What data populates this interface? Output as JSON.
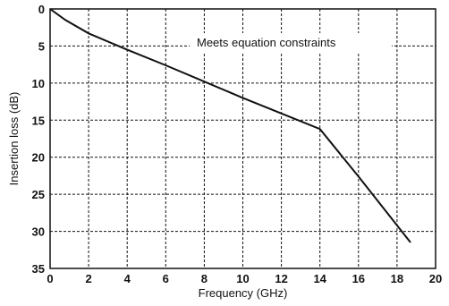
{
  "chart_data": {
    "type": "line",
    "xlabel": "Frequency (GHz)",
    "ylabel": "Insertion loss (dB)",
    "xlim": [
      0,
      20
    ],
    "ylim": [
      0,
      35
    ],
    "y_inverted": true,
    "grid": true,
    "xticks": [
      0,
      2,
      4,
      6,
      8,
      10,
      12,
      14,
      16,
      18,
      20
    ],
    "yticks": [
      0,
      5,
      10,
      15,
      20,
      25,
      30,
      35
    ],
    "annotation": "Meets equation constraints",
    "series": [
      {
        "x": [
          0,
          0.8,
          2,
          4,
          6,
          8,
          10,
          12,
          14,
          16,
          18.7
        ],
        "y": [
          0,
          1.5,
          3.3,
          5.5,
          7.6,
          9.8,
          12.0,
          14.1,
          16.2,
          22.6,
          31.5
        ]
      }
    ]
  }
}
